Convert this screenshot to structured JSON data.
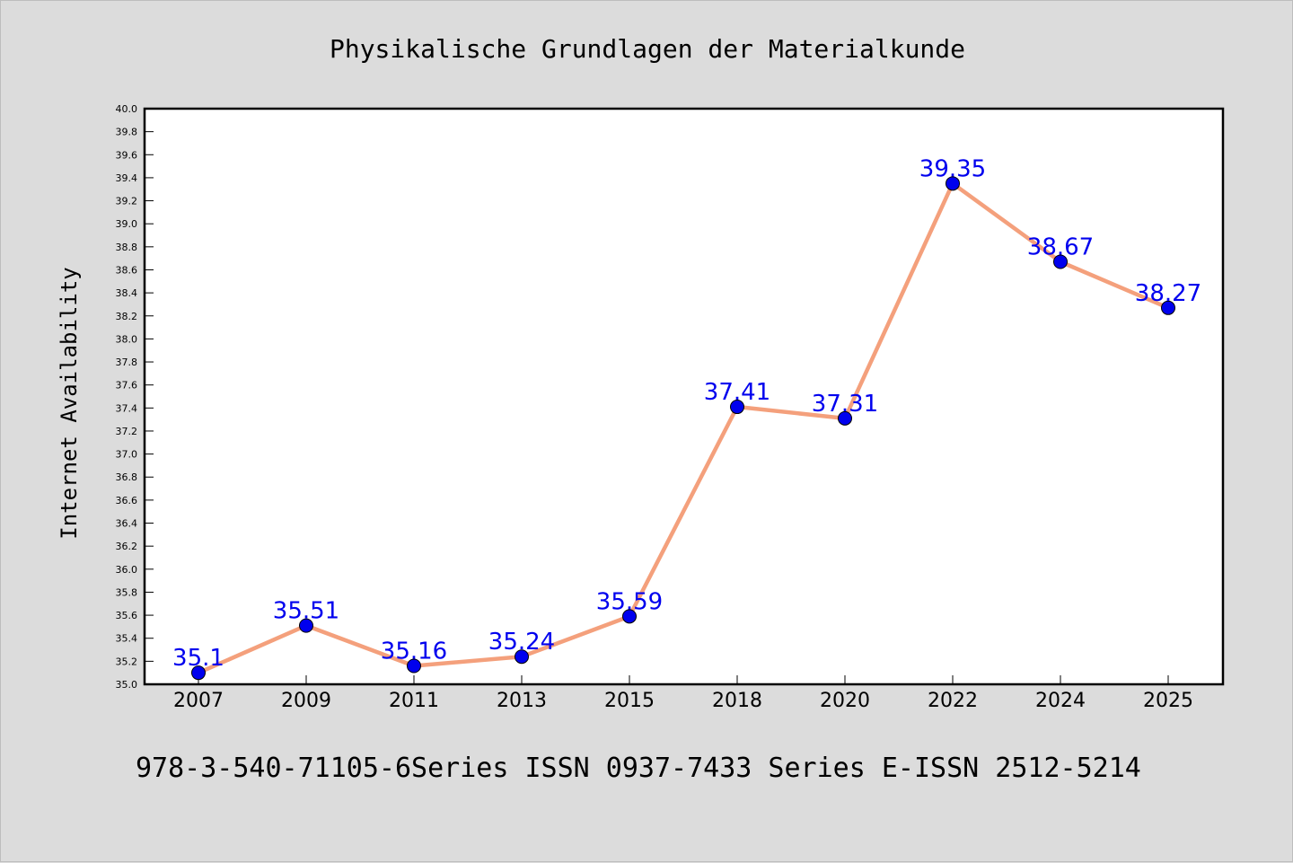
{
  "chart_data": {
    "type": "line",
    "title": "Physikalische Grundlagen der Materialkunde",
    "footer": "978-3-540-71105-6Series ISSN 0937-7433 Series E-ISSN 2512-5214",
    "xlabel": "",
    "ylabel": "Internet Availability",
    "categories": [
      "2007",
      "2009",
      "2011",
      "2013",
      "2015",
      "2018",
      "2020",
      "2022",
      "2024",
      "2025"
    ],
    "series": [
      {
        "values": [
          35.1,
          35.51,
          35.16,
          35.24,
          35.59,
          37.41,
          37.31,
          39.35,
          38.67,
          38.27
        ],
        "labels": [
          "35.1",
          "35.51",
          "35.16",
          "35.24",
          "35.59",
          "37.41",
          "37.31",
          "39.35",
          "38.67",
          "38.27"
        ]
      }
    ],
    "ylim": [
      35.0,
      40.0
    ],
    "ytick_step": 0.2,
    "grid": false,
    "legend": "none",
    "colors": {
      "line": "#f4a07c",
      "marker": "#0000ee",
      "data_label": "#0000ee",
      "background": "#dcdcdc",
      "plot_background": "#ffffff"
    }
  }
}
